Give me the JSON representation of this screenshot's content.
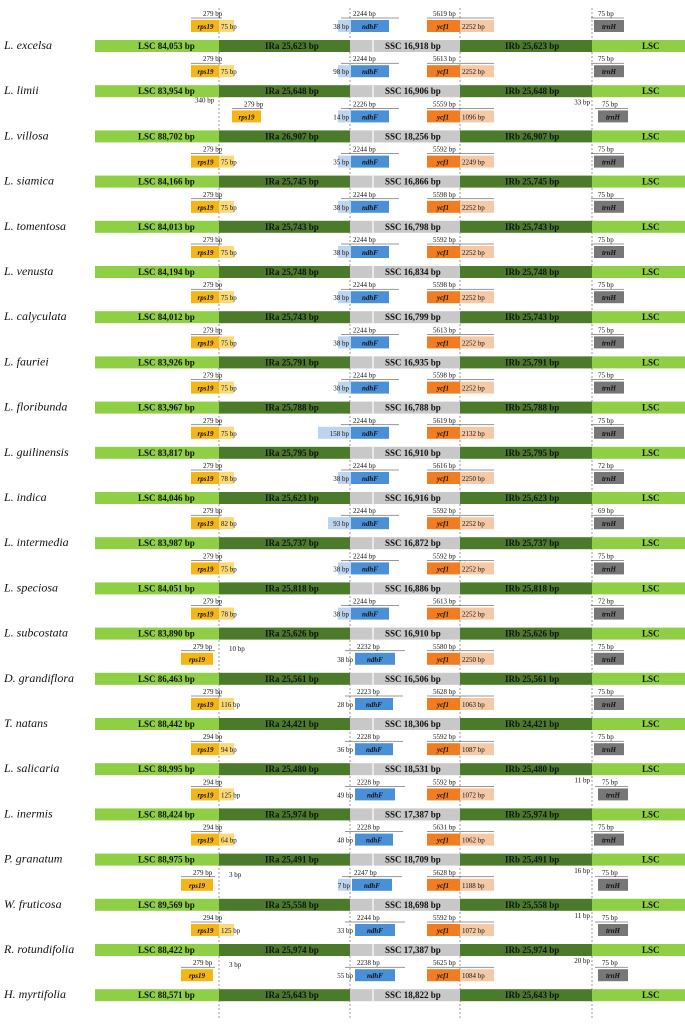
{
  "segments": {
    "lsc": "LSC",
    "ira": "IRa",
    "ssc": "SSC",
    "irb": "IRb"
  },
  "genes": {
    "rps19": "rps19",
    "ndhf": "ndhF",
    "ycf1": "ycf1",
    "trnh": "trnH"
  },
  "colors": {
    "lsc": "#8fcf45",
    "ir": "#4a7a2a",
    "ssc": "#c8c8c8",
    "rps19": "#f4b516",
    "rps19_light": "#f9d97a",
    "ndhf": "#4a90d6",
    "ndhf_light": "#bcd4ee",
    "ycf1": "#f07d22",
    "ycf1_light": "#f6c9a6",
    "trnh": "#777777"
  },
  "species": [
    {
      "name": "L. excelsa",
      "lsc": "LSC 84,053 bp",
      "ira": "IRa 25,623 bp",
      "ssc": "SSC 16,918 bp",
      "irb": "IRb 25,623 bp",
      "rps19_len": "279 bp",
      "rps19_over": "75 bp",
      "ndhf_len": "2244 bp",
      "ndhf_over": "38 bp",
      "ycf1_len": "5619 bp",
      "ycf1_over": "2252 bp",
      "trnh_len": "75 bp"
    },
    {
      "name": "L. limii",
      "lsc": "LSC 83,954 bp",
      "ira": "IRa 25,648 bp",
      "ssc": "SSC 16,906 bp",
      "irb": "IRb 25,648 bp",
      "rps19_len": "279 bp",
      "rps19_over": "75 bp",
      "ndhf_len": "2244 bp",
      "ndhf_over": "98 bp",
      "ycf1_len": "5613 bp",
      "ycf1_over": "2252 bp",
      "trnh_len": "75 bp"
    },
    {
      "name": "L. villosa",
      "lsc": "LSC 88,702 bp",
      "ira": "IRa 26,907 bp",
      "ssc": "SSC 18,256 bp",
      "irb": "IRb 26,907 bp",
      "rps19_len": "279 bp",
      "rps19_over": "340 bp",
      "ndhf_len": "2226 bp",
      "ndhf_over": "14 bp",
      "ycf1_len": "5559 bp",
      "ycf1_over": "1096 bp",
      "trnh_len": "75 bp",
      "trnh_over": "33 bp"
    },
    {
      "name": "L. siamica",
      "lsc": "LSC 84,166 bp",
      "ira": "IRa 25,745 bp",
      "ssc": "SSC 16,866 bp",
      "irb": "IRb 25,745 bp",
      "rps19_len": "279 bp",
      "rps19_over": "75 bp",
      "ndhf_len": "2244 bp",
      "ndhf_over": "35 bp",
      "ycf1_len": "5592 bp",
      "ycf1_over": "2249 bp",
      "trnh_len": "75 bp"
    },
    {
      "name": "L. tomentosa",
      "lsc": "LSC 84,013 bp",
      "ira": "IRa 25,743 bp",
      "ssc": "SSC 16,798 bp",
      "irb": "IRb 25,743 bp",
      "rps19_len": "279 bp",
      "rps19_over": "75 bp",
      "ndhf_len": "2244 bp",
      "ndhf_over": "38 bp",
      "ycf1_len": "5598 bp",
      "ycf1_over": "2252 bp",
      "trnh_len": "75 bp"
    },
    {
      "name": "L. venusta",
      "lsc": "LSC 84,194 bp",
      "ira": "IRa 25,748 bp",
      "ssc": "SSC 16,834 bp",
      "irb": "IRb 25,748 bp",
      "rps19_len": "279 bp",
      "rps19_over": "75 bp",
      "ndhf_len": "2244 bp",
      "ndhf_over": "38 bp",
      "ycf1_len": "5592 bp",
      "ycf1_over": "2252 bp",
      "trnh_len": "75 bp"
    },
    {
      "name": "L. calyculata",
      "lsc": "LSC 84,012 bp",
      "ira": "IRa 25,743 bp",
      "ssc": "SSC 16,799 bp",
      "irb": "IRb 25,743 bp",
      "rps19_len": "279 bp",
      "rps19_over": "75 bp",
      "ndhf_len": "2244 bp",
      "ndhf_over": "38 bp",
      "ycf1_len": "5598 bp",
      "ycf1_over": "2252 bp",
      "trnh_len": "75 bp"
    },
    {
      "name": "L. fauriei",
      "lsc": "LSC 83,926 bp",
      "ira": "IRa 25,791 bp",
      "ssc": "SSC 16,935 bp",
      "irb": "IRb 25,791 bp",
      "rps19_len": "279 bp",
      "rps19_over": "75 bp",
      "ndhf_len": "2244 bp",
      "ndhf_over": "38 bp",
      "ycf1_len": "5613 bp",
      "ycf1_over": "2252 bp",
      "trnh_len": "75 bp"
    },
    {
      "name": "L. floribunda",
      "lsc": "LSC 83,967 bp",
      "ira": "IRa 25,788 bp",
      "ssc": "SSC 16,788 bp",
      "irb": "IRb 25,788 bp",
      "rps19_len": "279 bp",
      "rps19_over": "75 bp",
      "ndhf_len": "2244 bp",
      "ndhf_over": "38 bp",
      "ycf1_len": "5598 bp",
      "ycf1_over": "2252 bp",
      "trnh_len": "75 bp"
    },
    {
      "name": "L. guilinensis",
      "lsc": "LSC 83,817 bp",
      "ira": "IRa 25,795 bp",
      "ssc": "SSC 16,910 bp",
      "irb": "IRb 25,795 bp",
      "rps19_len": "279 bp",
      "rps19_over": "75 bp",
      "ndhf_len": "2244 bp",
      "ndhf_over": "158 bp",
      "ycf1_len": "5619 bp",
      "ycf1_over": "2132 bp",
      "trnh_len": "75 bp"
    },
    {
      "name": "L. indica",
      "lsc": "LSC 84,046 bp",
      "ira": "IRa 25,623 bp",
      "ssc": "SSC 16,916 bp",
      "irb": "IRb 25,623 bp",
      "rps19_len": "279 bp",
      "rps19_over": "78 bp",
      "ndhf_len": "2244 bp",
      "ndhf_over": "38 bp",
      "ycf1_len": "5616 bp",
      "ycf1_over": "2250 bp",
      "trnh_len": "72 bp"
    },
    {
      "name": "L. intermedia",
      "lsc": "LSC 83,987 bp",
      "ira": "IRa 25,737 bp",
      "ssc": "SSC 16,872 bp",
      "irb": "IRb 25,737 bp",
      "rps19_len": "279 bp",
      "rps19_over": "82 bp",
      "ndhf_len": "2244 bp",
      "ndhf_over": "93 bp",
      "ycf1_len": "5592 bp",
      "ycf1_over": "2252 bp",
      "trnh_len": "69 bp"
    },
    {
      "name": "L. speciosa",
      "lsc": "LSC 84,051 bp",
      "ira": "IRa 25,818 bp",
      "ssc": "SSC 16,886 bp",
      "irb": "IRb 25,818 bp",
      "rps19_len": "279 bp",
      "rps19_over": "75 bp",
      "ndhf_len": "2244 bp",
      "ndhf_over": "38 bp",
      "ycf1_len": "5592 bp",
      "ycf1_over": "2252 bp",
      "trnh_len": "75 bp"
    },
    {
      "name": "L. subcostata",
      "lsc": "LSC 83,890 bp",
      "ira": "IRa 25,626 bp",
      "ssc": "SSC 16,910 bp",
      "irb": "IRb 25,626 bp",
      "rps19_len": "279 bp",
      "rps19_over": "78 bp",
      "ndhf_len": "2244 bp",
      "ndhf_over": "38 bp",
      "ycf1_len": "5613 bp",
      "ycf1_over": "2252 bp",
      "trnh_len": "72 bp"
    },
    {
      "name": "D. grandiflora",
      "lsc": "LSC 86,463 bp",
      "ira": "IRa 25,561 bp",
      "ssc": "SSC 16,506 bp",
      "irb": "IRb 25,561 bp",
      "rps19_len": "279 bp",
      "rps19_over": "10 bp",
      "ndhf_len": "2232 bp",
      "ndhf_over": "38 bp",
      "ycf1_len": "5580 bp",
      "ycf1_over": "2250 bp",
      "trnh_len": "75 bp"
    },
    {
      "name": "T. natans",
      "lsc": "LSC 88,442 bp",
      "ira": "IRa 24,421 bp",
      "ssc": "SSC 18,306 bp",
      "irb": "IRb 24,421 bp",
      "rps19_len": "279 bp",
      "rps19_over": "116 bp",
      "ndhf_len": "2223 bp",
      "ndhf_over": "28 bp",
      "ycf1_len": "5628 bp",
      "ycf1_over": "1063 bp",
      "trnh_len": "75 bp"
    },
    {
      "name": "L. salicaria",
      "lsc": "LSC 88,995 bp",
      "ira": "IRa 25,480 bp",
      "ssc": "SSC 18,531 bp",
      "irb": "IRb 25,480 bp",
      "rps19_len": "294 bp",
      "rps19_over": "94 bp",
      "ndhf_len": "2228 bp",
      "ndhf_over": "36 bp",
      "ycf1_len": "5592 bp",
      "ycf1_over": "1087 bp",
      "trnh_len": "75 bp"
    },
    {
      "name": "L. inermis",
      "lsc": "LSC 88,424 bp",
      "ira": "IRa 25,974 bp",
      "ssc": "SSC 17,387 bp",
      "irb": "IRb 25,974 bp",
      "rps19_len": "294 bp",
      "rps19_over": "125 bp",
      "ndhf_len": "2228 bp",
      "ndhf_over": "49 bp",
      "ycf1_len": "5592 bp",
      "ycf1_over": "1072 bp",
      "trnh_len": "75 bp",
      "trnh_over": "11 bp"
    },
    {
      "name": "P. granatum",
      "lsc": "LSC 88,975 bp",
      "ira": "IRa 25,491 bp",
      "ssc": "SSC 18,709 bp",
      "irb": "IRb 25,491 bp",
      "rps19_len": "294 bp",
      "rps19_over": "64 bp",
      "ndhf_len": "2228 bp",
      "ndhf_over": "48 bp",
      "ycf1_len": "5631 bp",
      "ycf1_over": "1062 bp",
      "trnh_len": "75 bp"
    },
    {
      "name": "W. fruticosa",
      "lsc": "LSC 89,569 bp",
      "ira": "IRa 25,558 bp",
      "ssc": "SSC 18,698 bp",
      "irb": "IRb 25,558 bp",
      "rps19_len": "279 bp",
      "rps19_over": "3 bp",
      "ndhf_len": "2247 bp",
      "ndhf_over": "7 bp",
      "ycf1_len": "5628 bp",
      "ycf1_over": "1188 bp",
      "trnh_len": "75 bp",
      "trnh_over": "16 bp"
    },
    {
      "name": "R. rotundifolia",
      "lsc": "LSC 88,422 bp",
      "ira": "IRa 25,974 bp",
      "ssc": "SSC 17,387 bp",
      "irb": "IRb 25,974 bp",
      "rps19_len": "294 bp",
      "rps19_over": "125 bp",
      "ndhf_len": "2244 bp",
      "ndhf_over": "33 bp",
      "ycf1_len": "5592 bp",
      "ycf1_over": "1072 bp",
      "trnh_len": "75 bp",
      "trnh_over": "11 bp"
    },
    {
      "name": "H. myrtifolia",
      "lsc": "LSC 88,571 bp",
      "ira": "IRa 25,643 bp",
      "ssc": "SSC 18,822 bp",
      "irb": "IRb 25,643 bp",
      "rps19_len": "279 bp",
      "rps19_over": "3 bp",
      "ndhf_len": "2238 bp",
      "ndhf_over": "55 bp",
      "ycf1_len": "5625 bp",
      "ycf1_over": "1084 bp",
      "trnh_len": "75 bp",
      "trnh_over": "20 bp"
    }
  ]
}
